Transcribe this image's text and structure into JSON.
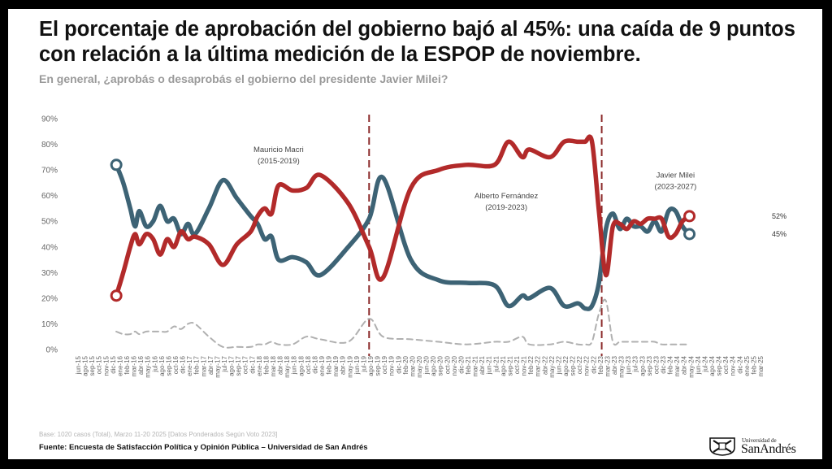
{
  "title": "El porcentaje de aprobación del gobierno bajó al 45%: una caída de 9 puntos con relación a la última medición de la ESPOP de noviembre.",
  "subtitle": "En general, ¿aprobás o desaprobás el gobierno del presidente Javier Milei?",
  "base_note": "Base: 1020 casos (Total), Marzo 11-20 2025 [Datos Ponderados Según Voto 2023]",
  "source": "Fuente: Encuesta de Satisfacción Política y Opinión Pública – Universidad de San Andrés",
  "logo": {
    "small": "Universidad de",
    "big": "SanAndrés"
  },
  "colors": {
    "approve": "#3d6375",
    "disapprove": "#b22a2a",
    "nsnc": "#b0b0b0",
    "divider": "#8b2a2a"
  },
  "chart_data": {
    "type": "line",
    "ylim": [
      0,
      90
    ],
    "yticks": [
      "0%",
      "10%",
      "20%",
      "30%",
      "40%",
      "50%",
      "60%",
      "70%",
      "80%",
      "90%"
    ],
    "grid": false,
    "x_tick_labels": [
      "jun-15",
      "ago-15",
      "sep-15",
      "oct-15",
      "nov-15",
      "dic-15",
      "ene-16",
      "feb-16",
      "mar-16",
      "abr-16",
      "may-16",
      "jul-16",
      "ago-16",
      "sep-16",
      "oct-16",
      "dic-16",
      "ene-17",
      "feb-17",
      "mar-17",
      "abr-17",
      "may-17",
      "jul-17",
      "ago-17",
      "sep-17",
      "oct-17",
      "dic-17",
      "ene-18",
      "feb-18",
      "mar-18",
      "abr-18",
      "may-18",
      "jun-18",
      "ago-18",
      "oct-18",
      "dic-18",
      "ene-19",
      "feb-19",
      "mar-19",
      "abr-19",
      "may-19",
      "jun-19",
      "jul-19",
      "ago-19",
      "sep-19",
      "oct-19",
      "nov-19",
      "dic-19",
      "feb-20",
      "mar-20",
      "may-20",
      "jun-20",
      "ago-20",
      "sep-20",
      "oct-20",
      "nov-20",
      "dic-20",
      "feb-21",
      "mar-21",
      "abr-21",
      "jun-21",
      "jul-21",
      "ago-21",
      "sep-21",
      "oct-21",
      "nov-21",
      "feb-22",
      "mar-22",
      "abr-22",
      "may-22",
      "jun-22",
      "ago-22",
      "sep-22",
      "oct-22",
      "nov-22",
      "dic-22",
      "feb-23",
      "mar-23",
      "abr-23",
      "may-23",
      "jun-23",
      "jul-23",
      "ago-23",
      "sep-23",
      "oct-23",
      "dic-23",
      "feb-24",
      "mar-24",
      "abr-24",
      "may-24",
      "jun-24",
      "jul-24",
      "ago-24",
      "sep-24",
      "oct-24",
      "nov-24",
      "dic-24",
      "ene-25",
      "feb-25",
      "mar-25"
    ],
    "series": [
      {
        "key": "approve",
        "points": [
          [
            5.5,
            72
          ],
          [
            6.5,
            65
          ],
          [
            7.5,
            55
          ],
          [
            8.2,
            48
          ],
          [
            8.8,
            54
          ],
          [
            9.8,
            48
          ],
          [
            10.8,
            50
          ],
          [
            11.8,
            56
          ],
          [
            12.8,
            50
          ],
          [
            13.8,
            51
          ],
          [
            14.8,
            45
          ],
          [
            15.8,
            49
          ],
          [
            16.8,
            45
          ],
          [
            18.8,
            55
          ],
          [
            20.8,
            66
          ],
          [
            22.8,
            59
          ],
          [
            24.8,
            52
          ],
          [
            25.8,
            49
          ],
          [
            26.8,
            43
          ],
          [
            27.8,
            44
          ],
          [
            28.8,
            35
          ],
          [
            30.8,
            36
          ],
          [
            32.8,
            34
          ],
          [
            34.8,
            29
          ],
          [
            38.8,
            40
          ],
          [
            41.8,
            51
          ],
          [
            43.8,
            67
          ],
          [
            47.8,
            35
          ],
          [
            51.8,
            27
          ],
          [
            55.8,
            26
          ],
          [
            59.8,
            25
          ],
          [
            61.8,
            17
          ],
          [
            63.8,
            21
          ],
          [
            64.8,
            20
          ],
          [
            67.8,
            24
          ],
          [
            69.8,
            17
          ],
          [
            71.8,
            18
          ],
          [
            72.8,
            16
          ],
          [
            73.8,
            17
          ],
          [
            74.8,
            26
          ],
          [
            75.8,
            47
          ],
          [
            76.8,
            53
          ],
          [
            77.8,
            47
          ],
          [
            78.8,
            51
          ],
          [
            79.8,
            48
          ],
          [
            80.8,
            48
          ],
          [
            81.8,
            46
          ],
          [
            82.8,
            50
          ],
          [
            83.8,
            46
          ],
          [
            84.8,
            54
          ],
          [
            85.8,
            54
          ],
          [
            86.8,
            48
          ],
          [
            87.8,
            45
          ]
        ]
      },
      {
        "key": "disapprove",
        "points": [
          [
            5.5,
            21
          ],
          [
            6.5,
            30
          ],
          [
            7.5,
            40
          ],
          [
            8.2,
            45
          ],
          [
            8.8,
            41
          ],
          [
            9.8,
            45
          ],
          [
            10.8,
            43
          ],
          [
            11.8,
            37
          ],
          [
            12.8,
            43
          ],
          [
            13.8,
            40
          ],
          [
            14.8,
            46
          ],
          [
            15.8,
            43
          ],
          [
            16.8,
            44
          ],
          [
            18.8,
            41
          ],
          [
            20.8,
            33
          ],
          [
            22.8,
            41
          ],
          [
            24.8,
            46
          ],
          [
            25.8,
            52
          ],
          [
            26.8,
            55
          ],
          [
            27.8,
            53
          ],
          [
            28.8,
            64
          ],
          [
            30.8,
            62
          ],
          [
            32.8,
            63
          ],
          [
            34.8,
            68
          ],
          [
            38.8,
            57
          ],
          [
            41.8,
            40
          ],
          [
            43.8,
            28
          ],
          [
            47.8,
            63
          ],
          [
            51.8,
            70
          ],
          [
            55.8,
            72
          ],
          [
            59.8,
            72
          ],
          [
            61.8,
            81
          ],
          [
            63.8,
            75
          ],
          [
            64.8,
            78
          ],
          [
            67.8,
            75
          ],
          [
            69.8,
            81
          ],
          [
            71.8,
            81
          ],
          [
            72.8,
            81
          ],
          [
            73.8,
            81
          ],
          [
            74.8,
            54
          ],
          [
            75.8,
            29
          ],
          [
            76.8,
            48
          ],
          [
            77.8,
            49
          ],
          [
            78.8,
            47
          ],
          [
            79.8,
            50
          ],
          [
            80.8,
            49
          ],
          [
            81.8,
            51
          ],
          [
            82.8,
            51
          ],
          [
            83.8,
            51
          ],
          [
            84.8,
            44
          ],
          [
            85.8,
            45
          ],
          [
            86.8,
            50
          ],
          [
            87.8,
            52
          ]
        ]
      },
      {
        "key": "nsnc",
        "points": [
          [
            5.5,
            7
          ],
          [
            6.5,
            6
          ],
          [
            7.5,
            6
          ],
          [
            8.2,
            7
          ],
          [
            8.8,
            6
          ],
          [
            9.8,
            7
          ],
          [
            10.8,
            7
          ],
          [
            11.8,
            7
          ],
          [
            12.8,
            7
          ],
          [
            13.8,
            9
          ],
          [
            14.8,
            8
          ],
          [
            15.8,
            10
          ],
          [
            16.8,
            10
          ],
          [
            18.8,
            5
          ],
          [
            20.8,
            1
          ],
          [
            22.8,
            1
          ],
          [
            24.8,
            1
          ],
          [
            25.8,
            2
          ],
          [
            26.8,
            2
          ],
          [
            27.8,
            3
          ],
          [
            28.8,
            2
          ],
          [
            30.8,
            2
          ],
          [
            32.8,
            5
          ],
          [
            34.8,
            4
          ],
          [
            38.8,
            3
          ],
          [
            41.8,
            12
          ],
          [
            43.8,
            5
          ],
          [
            47.8,
            4
          ],
          [
            51.8,
            3
          ],
          [
            55.8,
            2
          ],
          [
            59.8,
            3
          ],
          [
            61.8,
            3
          ],
          [
            63.8,
            5
          ],
          [
            64.8,
            2
          ],
          [
            67.8,
            2
          ],
          [
            69.8,
            3
          ],
          [
            71.8,
            2
          ],
          [
            72.8,
            2
          ],
          [
            73.8,
            3
          ],
          [
            74.8,
            14
          ],
          [
            75.8,
            19
          ],
          [
            76.8,
            3
          ],
          [
            77.8,
            3
          ],
          [
            78.8,
            3
          ],
          [
            79.8,
            3
          ],
          [
            80.8,
            3
          ],
          [
            81.8,
            3
          ],
          [
            82.8,
            3
          ],
          [
            83.8,
            2
          ],
          [
            84.8,
            2
          ],
          [
            85.8,
            2
          ],
          [
            86.8,
            2
          ],
          [
            87.8,
            2
          ]
        ]
      }
    ],
    "dividers": [
      41.8,
      75.2
    ],
    "markers": [
      {
        "series": "approve",
        "x": 5.5,
        "y": 72
      },
      {
        "series": "disapprove",
        "x": 5.5,
        "y": 21
      },
      {
        "series": "approve",
        "x": 87.8,
        "y": 45
      },
      {
        "series": "disapprove",
        "x": 87.8,
        "y": 52
      }
    ],
    "annotations": [
      {
        "lines": [
          "Mauricio Macri",
          "(2015-2019)"
        ],
        "x": 28.8,
        "y": 77
      },
      {
        "lines": [
          "Alberto Fernández",
          "(2019-2023)"
        ],
        "x": 61.5,
        "y": 59
      },
      {
        "lines": [
          "Javier Milei",
          "(2023-2027)"
        ],
        "x": 85.8,
        "y": 67
      }
    ],
    "end_labels": [
      {
        "text": "52%",
        "series": "disapprove",
        "y": 52
      },
      {
        "text": "45%",
        "series": "approve",
        "y": 45
      }
    ]
  }
}
